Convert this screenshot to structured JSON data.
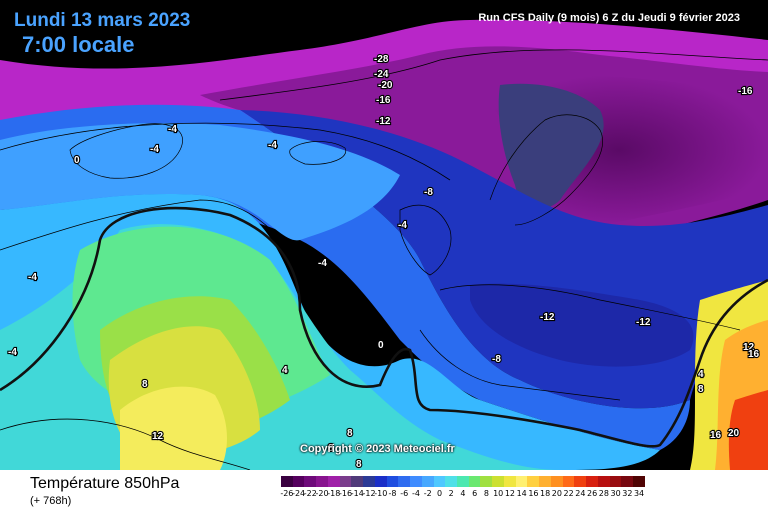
{
  "header": {
    "date": "Lundi 13 mars 2023",
    "time": "7:00 locale",
    "run": "Run CFS Daily (9 mois) 6 Z du Jeudi 9 février 2023"
  },
  "copyright": "Copyright © 2023 Meteociel.fr",
  "footer": {
    "title": "Température 850hPa",
    "subtitle": "(+ 768h)"
  },
  "legend": {
    "values": [
      "-26",
      "-24",
      "-22",
      "-20",
      "-18",
      "-16",
      "-14",
      "-12",
      "-10",
      "-8",
      "-6",
      "-4",
      "-2",
      "0",
      "2",
      "4",
      "6",
      "8",
      "10",
      "12",
      "14",
      "16",
      "18",
      "20",
      "22",
      "24",
      "26",
      "28",
      "30",
      "32",
      "34"
    ],
    "colors": [
      "#3a0040",
      "#55005e",
      "#6e0a7a",
      "#88148f",
      "#a020a8",
      "#7a3c8c",
      "#503a7a",
      "#2c3a96",
      "#1b2fc8",
      "#1f4ee0",
      "#2f6cf0",
      "#3f8cff",
      "#47a8ff",
      "#4fc8ff",
      "#4fe0e8",
      "#4ce8b0",
      "#6ae870",
      "#a0e040",
      "#cce030",
      "#f0e640",
      "#fff070",
      "#ffd040",
      "#ffb030",
      "#ff9020",
      "#ff6a18",
      "#f04010",
      "#d82010",
      "#b81010",
      "#980c10",
      "#780810",
      "#500404"
    ]
  },
  "isotherm_labels": [
    "-28",
    "-24",
    "-20",
    "-16",
    "-12",
    "-16",
    "-4",
    "-4",
    "0",
    "-4",
    "-8",
    "-4",
    "-4",
    "-4",
    "-4",
    "-12",
    "-12",
    "-8",
    "0",
    "8",
    "4",
    "12",
    "8",
    "8",
    "8",
    "4",
    "8",
    "12",
    "16",
    "16",
    "20"
  ],
  "colors": {
    "background": "#000000",
    "header_text": "#4aa3ff",
    "footer_bg": "#ffffff"
  }
}
